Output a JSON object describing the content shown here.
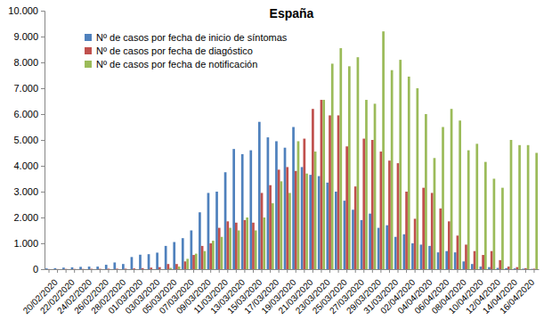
{
  "chart_data": {
    "type": "bar",
    "title": "España",
    "categories": [
      "20/02/2020",
      null,
      "22/02/2020",
      null,
      "24/02/2020",
      null,
      "26/02/2020",
      null,
      "28/02/2020",
      null,
      "01/03/2020",
      null,
      "03/03/2020",
      null,
      "05/03/2020",
      null,
      "07/03/2020",
      null,
      "09/03/2020",
      null,
      "11/03/2020",
      null,
      "13/03/2020",
      null,
      "15/03/2020",
      null,
      "17/03/2020",
      null,
      "19/03/2020",
      null,
      "21/03/2020",
      null,
      "23/03/2020",
      null,
      "25/03/2020",
      null,
      "27/03/2020",
      null,
      "29/03/2020",
      null,
      "31/03/2020",
      null,
      "02/04/2020",
      null,
      "04/04/2020",
      null,
      "06/04/2020",
      null,
      "08/04/2020",
      null,
      "10/04/2020",
      null,
      "12/04/2020",
      null,
      "14/04/2020",
      null,
      "16/04/2020",
      null
    ],
    "series": [
      {
        "name": "Nº de casos por fecha de inicio de síntomas",
        "color": "#4f81bd",
        "values": [
          30,
          40,
          60,
          70,
          90,
          100,
          100,
          170,
          260,
          200,
          470,
          560,
          580,
          640,
          900,
          1050,
          1200,
          1500,
          2200,
          2950,
          3000,
          3750,
          4650,
          4450,
          4600,
          5700,
          5100,
          4950,
          4700,
          5500,
          3950,
          3650,
          3600,
          3350,
          3000,
          2650,
          2300,
          1900,
          2150,
          1600,
          1700,
          1250,
          1350,
          1000,
          950,
          900,
          650,
          700,
          650,
          300,
          200,
          100,
          80,
          50,
          40,
          30,
          20,
          10
        ]
      },
      {
        "name": "Nº de casos por fecha de diagóstico",
        "color": "#c0504d",
        "values": [
          5,
          5,
          10,
          10,
          10,
          15,
          15,
          20,
          20,
          20,
          30,
          40,
          60,
          80,
          200,
          200,
          300,
          550,
          900,
          1000,
          1600,
          1850,
          1800,
          1900,
          1800,
          2950,
          3250,
          3850,
          3950,
          3800,
          5050,
          6200,
          6550,
          5950,
          5950,
          4750,
          3200,
          5050,
          5000,
          4550,
          4200,
          4100,
          3000,
          1950,
          3150,
          2950,
          2350,
          1850,
          1300,
          950,
          700,
          550,
          700,
          350,
          100,
          80,
          40,
          20
        ]
      },
      {
        "name": "Nº de casos por fecha de notificación",
        "color": "#9bbb59",
        "values": [
          0,
          0,
          0,
          0,
          0,
          0,
          0,
          0,
          0,
          0,
          0,
          0,
          0,
          0,
          50,
          100,
          400,
          600,
          700,
          1100,
          1250,
          1600,
          1500,
          2000,
          1500,
          2000,
          2550,
          3400,
          2950,
          4950,
          3700,
          4550,
          6550,
          7950,
          8550,
          7850,
          8200,
          6550,
          6400,
          9200,
          7700,
          8100,
          7450,
          7000,
          6000,
          4300,
          5500,
          6200,
          5750,
          4600,
          4850,
          4150,
          3500,
          3150,
          5000,
          4800,
          4800,
          4500
        ]
      }
    ],
    "ylim": [
      0,
      10000
    ],
    "yticks": [
      0,
      {
        "value": 1000,
        "label": "1.000"
      },
      {
        "value": 2000,
        "label": "2.000"
      },
      {
        "value": 3000,
        "label": "3.000"
      },
      {
        "value": 4000,
        "label": "4.000"
      },
      {
        "value": 5000,
        "label": "5.000"
      },
      {
        "value": 6000,
        "label": "6.000"
      },
      {
        "value": 7000,
        "label": "7.000"
      },
      {
        "value": 8000,
        "label": "8.000"
      },
      {
        "value": 9000,
        "label": "9.000"
      },
      {
        "value": 10000,
        "label": "10.000"
      }
    ],
    "grid": false,
    "legend": "upper left"
  }
}
